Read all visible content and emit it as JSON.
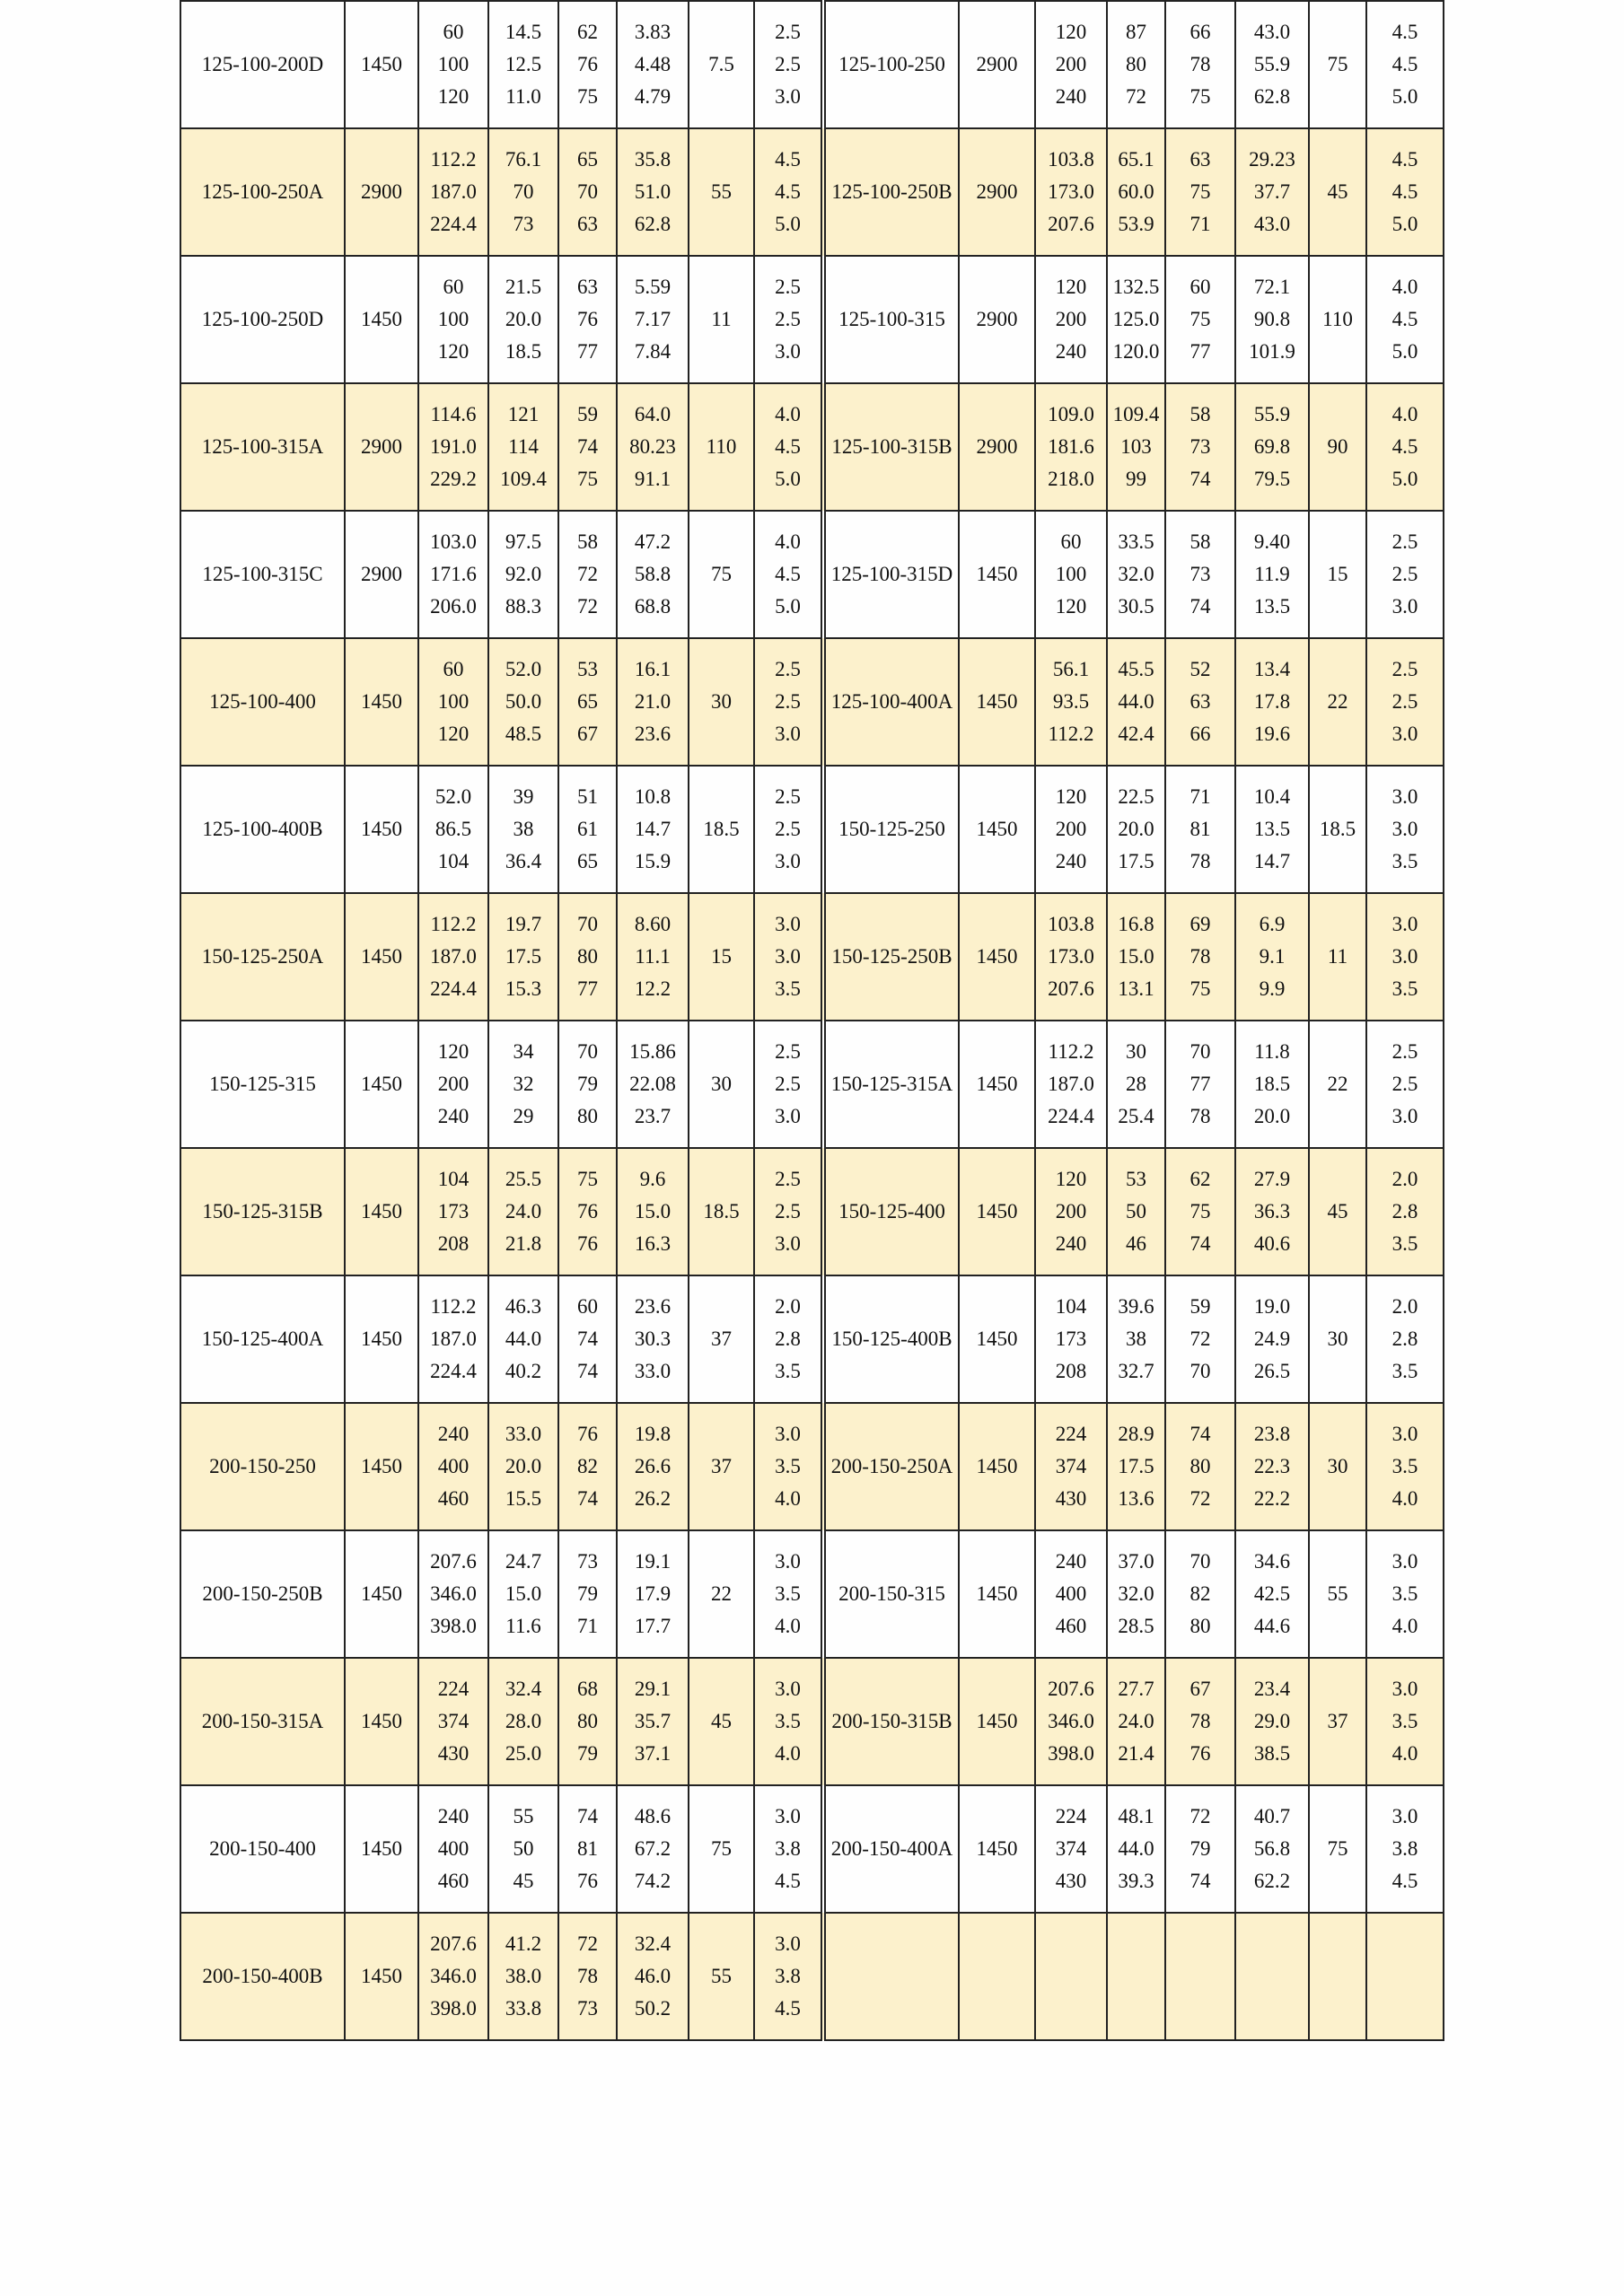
{
  "colors": {
    "row_alt": "#fcf1cc",
    "row_plain": "#ffffff",
    "border": "#222222"
  },
  "rows": [
    {
      "left": {
        "model": "125-100-200D",
        "speed": "1450",
        "flow": [
          "60",
          "100",
          "120"
        ],
        "head": [
          "14.5",
          "12.5",
          "11.0"
        ],
        "eff": [
          "62",
          "76",
          "75"
        ],
        "power": [
          "3.83",
          "4.48",
          "4.79"
        ],
        "motor": "7.5",
        "npsh": [
          "2.5",
          "2.5",
          "3.0"
        ]
      },
      "right": {
        "model": "125-100-250",
        "speed": "2900",
        "flow": [
          "120",
          "200",
          "240"
        ],
        "head": [
          "87",
          "80",
          "72"
        ],
        "eff": [
          "66",
          "78",
          "75"
        ],
        "power": [
          "43.0",
          "55.9",
          "62.8"
        ],
        "motor": "75",
        "npsh": [
          "4.5",
          "4.5",
          "5.0"
        ]
      }
    },
    {
      "left": {
        "model": "125-100-250A",
        "speed": "2900",
        "flow": [
          "112.2",
          "187.0",
          "224.4"
        ],
        "head": [
          "76.1",
          "70",
          "73"
        ],
        "eff": [
          "65",
          "70",
          "63"
        ],
        "power": [
          "35.8",
          "51.0",
          "62.8"
        ],
        "motor": "55",
        "npsh": [
          "4.5",
          "4.5",
          "5.0"
        ]
      },
      "right": {
        "model": "125-100-250B",
        "speed": "2900",
        "flow": [
          "103.8",
          "173.0",
          "207.6"
        ],
        "head": [
          "65.1",
          "60.0",
          "53.9"
        ],
        "eff": [
          "63",
          "75",
          "71"
        ],
        "power": [
          "29.23",
          "37.7",
          "43.0"
        ],
        "motor": "45",
        "npsh": [
          "4.5",
          "4.5",
          "5.0"
        ]
      }
    },
    {
      "left": {
        "model": "125-100-250D",
        "speed": "1450",
        "flow": [
          "60",
          "100",
          "120"
        ],
        "head": [
          "21.5",
          "20.0",
          "18.5"
        ],
        "eff": [
          "63",
          "76",
          "77"
        ],
        "power": [
          "5.59",
          "7.17",
          "7.84"
        ],
        "motor": "11",
        "npsh": [
          "2.5",
          "2.5",
          "3.0"
        ]
      },
      "right": {
        "model": "125-100-315",
        "speed": "2900",
        "flow": [
          "120",
          "200",
          "240"
        ],
        "head": [
          "132.5",
          "125.0",
          "120.0"
        ],
        "eff": [
          "60",
          "75",
          "77"
        ],
        "power": [
          "72.1",
          "90.8",
          "101.9"
        ],
        "motor": "110",
        "npsh": [
          "4.0",
          "4.5",
          "5.0"
        ]
      }
    },
    {
      "left": {
        "model": "125-100-315A",
        "speed": "2900",
        "flow": [
          "114.6",
          "191.0",
          "229.2"
        ],
        "head": [
          "121",
          "114",
          "109.4"
        ],
        "eff": [
          "59",
          "74",
          "75"
        ],
        "power": [
          "64.0",
          "80.23",
          "91.1"
        ],
        "motor": "110",
        "npsh": [
          "4.0",
          "4.5",
          "5.0"
        ]
      },
      "right": {
        "model": "125-100-315B",
        "speed": "2900",
        "flow": [
          "109.0",
          "181.6",
          "218.0"
        ],
        "head": [
          "109.4",
          "103",
          "99"
        ],
        "eff": [
          "58",
          "73",
          "74"
        ],
        "power": [
          "55.9",
          "69.8",
          "79.5"
        ],
        "motor": "90",
        "npsh": [
          "4.0",
          "4.5",
          "5.0"
        ]
      }
    },
    {
      "left": {
        "model": "125-100-315C",
        "speed": "2900",
        "flow": [
          "103.0",
          "171.6",
          "206.0"
        ],
        "head": [
          "97.5",
          "92.0",
          "88.3"
        ],
        "eff": [
          "58",
          "72",
          "72"
        ],
        "power": [
          "47.2",
          "58.8",
          "68.8"
        ],
        "motor": "75",
        "npsh": [
          "4.0",
          "4.5",
          "5.0"
        ]
      },
      "right": {
        "model": "125-100-315D",
        "speed": "1450",
        "flow": [
          "60",
          "100",
          "120"
        ],
        "head": [
          "33.5",
          "32.0",
          "30.5"
        ],
        "eff": [
          "58",
          "73",
          "74"
        ],
        "power": [
          "9.40",
          "11.9",
          "13.5"
        ],
        "motor": "15",
        "npsh": [
          "2.5",
          "2.5",
          "3.0"
        ]
      }
    },
    {
      "left": {
        "model": "125-100-400",
        "speed": "1450",
        "flow": [
          "60",
          "100",
          "120"
        ],
        "head": [
          "52.0",
          "50.0",
          "48.5"
        ],
        "eff": [
          "53",
          "65",
          "67"
        ],
        "power": [
          "16.1",
          "21.0",
          "23.6"
        ],
        "motor": "30",
        "npsh": [
          "2.5",
          "2.5",
          "3.0"
        ]
      },
      "right": {
        "model": "125-100-400A",
        "speed": "1450",
        "flow": [
          "56.1",
          "93.5",
          "112.2"
        ],
        "head": [
          "45.5",
          "44.0",
          "42.4"
        ],
        "eff": [
          "52",
          "63",
          "66"
        ],
        "power": [
          "13.4",
          "17.8",
          "19.6"
        ],
        "motor": "22",
        "npsh": [
          "2.5",
          "2.5",
          "3.0"
        ]
      }
    },
    {
      "left": {
        "model": "125-100-400B",
        "speed": "1450",
        "flow": [
          "52.0",
          "86.5",
          "104"
        ],
        "head": [
          "39",
          "38",
          "36.4"
        ],
        "eff": [
          "51",
          "61",
          "65"
        ],
        "power": [
          "10.8",
          "14.7",
          "15.9"
        ],
        "motor": "18.5",
        "npsh": [
          "2.5",
          "2.5",
          "3.0"
        ]
      },
      "right": {
        "model": "150-125-250",
        "speed": "1450",
        "flow": [
          "120",
          "200",
          "240"
        ],
        "head": [
          "22.5",
          "20.0",
          "17.5"
        ],
        "eff": [
          "71",
          "81",
          "78"
        ],
        "power": [
          "10.4",
          "13.5",
          "14.7"
        ],
        "motor": "18.5",
        "npsh": [
          "3.0",
          "3.0",
          "3.5"
        ]
      }
    },
    {
      "left": {
        "model": "150-125-250A",
        "speed": "1450",
        "flow": [
          "112.2",
          "187.0",
          "224.4"
        ],
        "head": [
          "19.7",
          "17.5",
          "15.3"
        ],
        "eff": [
          "70",
          "80",
          "77"
        ],
        "power": [
          "8.60",
          "11.1",
          "12.2"
        ],
        "motor": "15",
        "npsh": [
          "3.0",
          "3.0",
          "3.5"
        ]
      },
      "right": {
        "model": "150-125-250B",
        "speed": "1450",
        "flow": [
          "103.8",
          "173.0",
          "207.6"
        ],
        "head": [
          "16.8",
          "15.0",
          "13.1"
        ],
        "eff": [
          "69",
          "78",
          "75"
        ],
        "power": [
          "6.9",
          "9.1",
          "9.9"
        ],
        "motor": "11",
        "npsh": [
          "3.0",
          "3.0",
          "3.5"
        ]
      }
    },
    {
      "left": {
        "model": "150-125-315",
        "speed": "1450",
        "flow": [
          "120",
          "200",
          "240"
        ],
        "head": [
          "34",
          "32",
          "29"
        ],
        "eff": [
          "70",
          "79",
          "80"
        ],
        "power": [
          "15.86",
          "22.08",
          "23.7"
        ],
        "motor": "30",
        "npsh": [
          "2.5",
          "2.5",
          "3.0"
        ]
      },
      "right": {
        "model": "150-125-315A",
        "speed": "1450",
        "flow": [
          "112.2",
          "187.0",
          "224.4"
        ],
        "head": [
          "30",
          "28",
          "25.4"
        ],
        "eff": [
          "70",
          "77",
          "78"
        ],
        "power": [
          "11.8",
          "18.5",
          "20.0"
        ],
        "motor": "22",
        "npsh": [
          "2.5",
          "2.5",
          "3.0"
        ]
      }
    },
    {
      "left": {
        "model": "150-125-315B",
        "speed": "1450",
        "flow": [
          "104",
          "173",
          "208"
        ],
        "head": [
          "25.5",
          "24.0",
          "21.8"
        ],
        "eff": [
          "75",
          "76",
          "76"
        ],
        "power": [
          "9.6",
          "15.0",
          "16.3"
        ],
        "motor": "18.5",
        "npsh": [
          "2.5",
          "2.5",
          "3.0"
        ]
      },
      "right": {
        "model": "150-125-400",
        "speed": "1450",
        "flow": [
          "120",
          "200",
          "240"
        ],
        "head": [
          "53",
          "50",
          "46"
        ],
        "eff": [
          "62",
          "75",
          "74"
        ],
        "power": [
          "27.9",
          "36.3",
          "40.6"
        ],
        "motor": "45",
        "npsh": [
          "2.0",
          "2.8",
          "3.5"
        ]
      }
    },
    {
      "left": {
        "model": "150-125-400A",
        "speed": "1450",
        "flow": [
          "112.2",
          "187.0",
          "224.4"
        ],
        "head": [
          "46.3",
          "44.0",
          "40.2"
        ],
        "eff": [
          "60",
          "74",
          "74"
        ],
        "power": [
          "23.6",
          "30.3",
          "33.0"
        ],
        "motor": "37",
        "npsh": [
          "2.0",
          "2.8",
          "3.5"
        ]
      },
      "right": {
        "model": "150-125-400B",
        "speed": "1450",
        "flow": [
          "104",
          "173",
          "208"
        ],
        "head": [
          "39.6",
          "38",
          "32.7"
        ],
        "eff": [
          "59",
          "72",
          "70"
        ],
        "power": [
          "19.0",
          "24.9",
          "26.5"
        ],
        "motor": "30",
        "npsh": [
          "2.0",
          "2.8",
          "3.5"
        ]
      }
    },
    {
      "left": {
        "model": "200-150-250",
        "speed": "1450",
        "flow": [
          "240",
          "400",
          "460"
        ],
        "head": [
          "33.0",
          "20.0",
          "15.5"
        ],
        "eff": [
          "76",
          "82",
          "74"
        ],
        "power": [
          "19.8",
          "26.6",
          "26.2"
        ],
        "motor": "37",
        "npsh": [
          "3.0",
          "3.5",
          "4.0"
        ]
      },
      "right": {
        "model": "200-150-250A",
        "speed": "1450",
        "flow": [
          "224",
          "374",
          "430"
        ],
        "head": [
          "28.9",
          "17.5",
          "13.6"
        ],
        "eff": [
          "74",
          "80",
          "72"
        ],
        "power": [
          "23.8",
          "22.3",
          "22.2"
        ],
        "motor": "30",
        "npsh": [
          "3.0",
          "3.5",
          "4.0"
        ]
      }
    },
    {
      "left": {
        "model": "200-150-250B",
        "speed": "1450",
        "flow": [
          "207.6",
          "346.0",
          "398.0"
        ],
        "head": [
          "24.7",
          "15.0",
          "11.6"
        ],
        "eff": [
          "73",
          "79",
          "71"
        ],
        "power": [
          "19.1",
          "17.9",
          "17.7"
        ],
        "motor": "22",
        "npsh": [
          "3.0",
          "3.5",
          "4.0"
        ]
      },
      "right": {
        "model": "200-150-315",
        "speed": "1450",
        "flow": [
          "240",
          "400",
          "460"
        ],
        "head": [
          "37.0",
          "32.0",
          "28.5"
        ],
        "eff": [
          "70",
          "82",
          "80"
        ],
        "power": [
          "34.6",
          "42.5",
          "44.6"
        ],
        "motor": "55",
        "npsh": [
          "3.0",
          "3.5",
          "4.0"
        ]
      }
    },
    {
      "left": {
        "model": "200-150-315A",
        "speed": "1450",
        "flow": [
          "224",
          "374",
          "430"
        ],
        "head": [
          "32.4",
          "28.0",
          "25.0"
        ],
        "eff": [
          "68",
          "80",
          "79"
        ],
        "power": [
          "29.1",
          "35.7",
          "37.1"
        ],
        "motor": "45",
        "npsh": [
          "3.0",
          "3.5",
          "4.0"
        ]
      },
      "right": {
        "model": "200-150-315B",
        "speed": "1450",
        "flow": [
          "207.6",
          "346.0",
          "398.0"
        ],
        "head": [
          "27.7",
          "24.0",
          "21.4"
        ],
        "eff": [
          "67",
          "78",
          "76"
        ],
        "power": [
          "23.4",
          "29.0",
          "38.5"
        ],
        "motor": "37",
        "npsh": [
          "3.0",
          "3.5",
          "4.0"
        ]
      }
    },
    {
      "left": {
        "model": "200-150-400",
        "speed": "1450",
        "flow": [
          "240",
          "400",
          "460"
        ],
        "head": [
          "55",
          "50",
          "45"
        ],
        "eff": [
          "74",
          "81",
          "76"
        ],
        "power": [
          "48.6",
          "67.2",
          "74.2"
        ],
        "motor": "75",
        "npsh": [
          "3.0",
          "3.8",
          "4.5"
        ]
      },
      "right": {
        "model": "200-150-400A",
        "speed": "1450",
        "flow": [
          "224",
          "374",
          "430"
        ],
        "head": [
          "48.1",
          "44.0",
          "39.3"
        ],
        "eff": [
          "72",
          "79",
          "74"
        ],
        "power": [
          "40.7",
          "56.8",
          "62.2"
        ],
        "motor": "75",
        "npsh": [
          "3.0",
          "3.8",
          "4.5"
        ]
      }
    },
    {
      "left": {
        "model": "200-150-400B",
        "speed": "1450",
        "flow": [
          "207.6",
          "346.0",
          "398.0"
        ],
        "head": [
          "41.2",
          "38.0",
          "33.8"
        ],
        "eff": [
          "72",
          "78",
          "73"
        ],
        "power": [
          "32.4",
          "46.0",
          "50.2"
        ],
        "motor": "55",
        "npsh": [
          "3.0",
          "3.8",
          "4.5"
        ]
      },
      "right": null
    }
  ]
}
